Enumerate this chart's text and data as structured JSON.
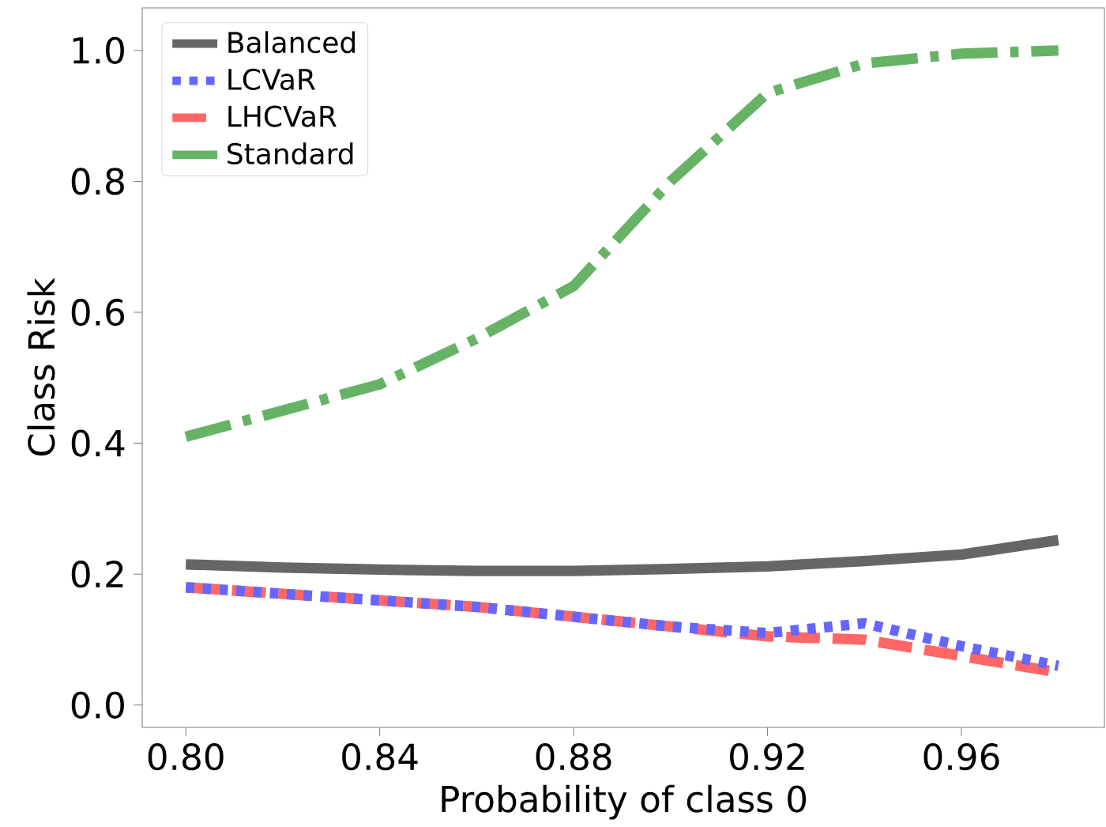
{
  "chart_data": {
    "type": "line",
    "xlabel": "Probability of class 0",
    "ylabel": "Class Risk",
    "x": [
      0.8,
      0.82,
      0.84,
      0.86,
      0.88,
      0.9,
      0.92,
      0.94,
      0.96,
      0.98
    ],
    "series": [
      {
        "name": "Balanced",
        "color": "#666666",
        "line_style": "solid",
        "values": [
          0.215,
          0.21,
          0.207,
          0.205,
          0.205,
          0.208,
          0.212,
          0.22,
          0.23,
          0.252
        ]
      },
      {
        "name": "LCVaR",
        "color": "#6666ff",
        "line_style": "dotted",
        "values": [
          0.18,
          0.17,
          0.16,
          0.15,
          0.135,
          0.12,
          0.11,
          0.125,
          0.09,
          0.06
        ]
      },
      {
        "name": "LHCVaR",
        "color": "#ff6666",
        "line_style": "dashed",
        "values": [
          0.18,
          0.17,
          0.16,
          0.15,
          0.135,
          0.12,
          0.105,
          0.1,
          0.075,
          0.05
        ]
      },
      {
        "name": "Standard",
        "color": "#66b366",
        "line_style": "dashdot",
        "values": [
          0.41,
          0.45,
          0.49,
          0.56,
          0.64,
          0.8,
          0.935,
          0.98,
          0.995,
          1.0
        ]
      }
    ],
    "xlim": [
      0.791,
      0.9895
    ],
    "ylim": [
      -0.034,
      1.065
    ],
    "xticks": [
      {
        "value": 0.8,
        "label": "0.80"
      },
      {
        "value": 0.84,
        "label": "0.84"
      },
      {
        "value": 0.88,
        "label": "0.88"
      },
      {
        "value": 0.92,
        "label": "0.92"
      },
      {
        "value": 0.96,
        "label": "0.96"
      }
    ],
    "yticks": [
      {
        "value": 0,
        "label": "0.0"
      },
      {
        "value": 0.2,
        "label": "0.2"
      },
      {
        "value": 0.4,
        "label": "0.4"
      },
      {
        "value": 0.6,
        "label": "0.6"
      },
      {
        "value": 0.8,
        "label": "0.8"
      },
      {
        "value": 1.0,
        "label": "1.0"
      }
    ],
    "legend": "top left",
    "grid": false,
    "marker": "none"
  }
}
